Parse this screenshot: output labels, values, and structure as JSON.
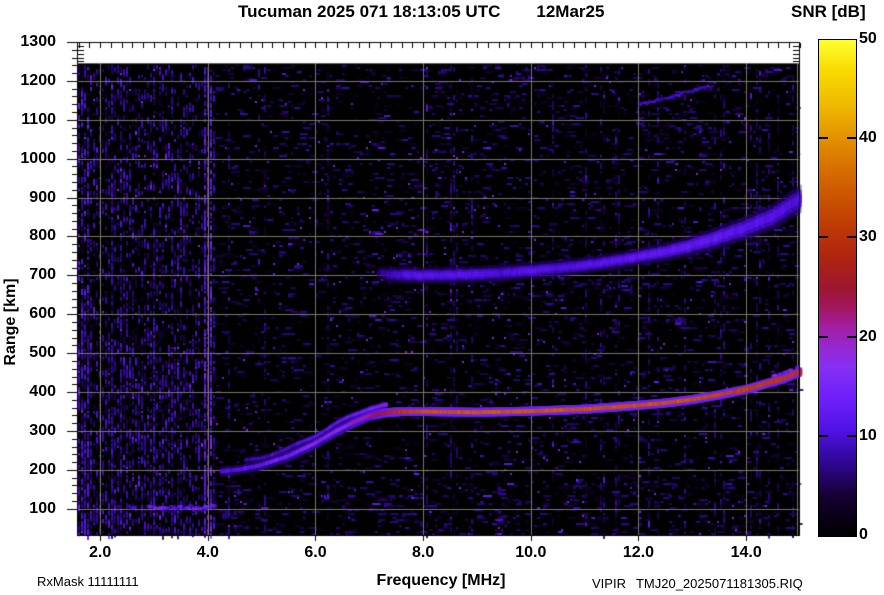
{
  "chart_data": {
    "type": "heatmap",
    "title_left": "Tucuman 2025 071 18:13:05 UTC",
    "title_right": "12Mar25",
    "xlabel": "Frequency [MHz]",
    "ylabel": "Range [km]",
    "x_tick_labels": [
      "2.0",
      "4.0",
      "6.0",
      "8.0",
      "10.0",
      "12.0",
      "14.0"
    ],
    "x_tick_values": [
      2,
      4,
      6,
      8,
      10,
      12,
      14
    ],
    "y_tick_labels": [
      "100",
      "200",
      "300",
      "400",
      "500",
      "600",
      "700",
      "800",
      "900",
      "1000",
      "1100",
      "1200",
      "1300"
    ],
    "y_tick_values": [
      100,
      200,
      300,
      400,
      500,
      600,
      700,
      800,
      900,
      1000,
      1100,
      1200,
      1300
    ],
    "x_range": [
      1.57,
      15.0
    ],
    "y_range": [
      30,
      1300
    ],
    "data_top_km": 1245,
    "grid": true,
    "x_minor_tick_mhz": 0.2,
    "y_minor_tick_km": 20,
    "colorbar": {
      "label": "SNR [dB]",
      "min": 0,
      "max": 50,
      "tick_labels": [
        "0",
        "10",
        "20",
        "30",
        "40",
        "50"
      ],
      "tick_values": [
        0,
        10,
        20,
        30,
        40,
        50
      ],
      "dash_values": [
        10,
        20,
        30,
        40
      ],
      "palette": [
        [
          0,
          "#000000"
        ],
        [
          4,
          "#150031"
        ],
        [
          8,
          "#3408a2"
        ],
        [
          11,
          "#5413ea"
        ],
        [
          14,
          "#6f20fa"
        ],
        [
          17,
          "#8530f2"
        ],
        [
          19,
          "#9628d2"
        ],
        [
          21,
          "#a31ea4"
        ],
        [
          23,
          "#a31660"
        ],
        [
          25,
          "#9e1630"
        ],
        [
          28,
          "#ae2410"
        ],
        [
          31,
          "#be3806"
        ],
        [
          35,
          "#ce5c00"
        ],
        [
          39,
          "#de8400"
        ],
        [
          43,
          "#eeb400"
        ],
        [
          47,
          "#f8dc00"
        ],
        [
          50,
          "#ffff30"
        ]
      ]
    },
    "features": {
      "main_trace": [
        [
          4.25,
          196,
          11
        ],
        [
          4.6,
          201,
          12
        ],
        [
          5.0,
          212,
          13
        ],
        [
          5.5,
          235,
          15
        ],
        [
          6.0,
          268,
          17
        ],
        [
          6.4,
          300,
          18
        ],
        [
          6.7,
          321,
          19
        ],
        [
          7.0,
          339,
          22
        ],
        [
          7.3,
          347,
          26
        ],
        [
          7.6,
          350,
          31
        ],
        [
          8.0,
          350,
          34
        ],
        [
          9.0,
          348,
          35
        ],
        [
          10.0,
          351,
          35
        ],
        [
          11.0,
          356,
          34
        ],
        [
          12.0,
          366,
          34
        ],
        [
          12.5,
          372,
          34
        ],
        [
          13.0,
          381,
          34
        ],
        [
          13.5,
          393,
          33
        ],
        [
          14.0,
          407,
          32
        ],
        [
          14.4,
          423,
          31
        ],
        [
          14.7,
          435,
          31
        ],
        [
          15.0,
          452,
          30
        ]
      ],
      "x_mode_split": {
        "f_start": 4.7,
        "f_end": 7.3,
        "offset_km": 19
      },
      "second_hop": [
        [
          7.15,
          706,
          9
        ],
        [
          7.6,
          701,
          11
        ],
        [
          8.0,
          700,
          12
        ],
        [
          8.5,
          701,
          12
        ],
        [
          9.0,
          703,
          12
        ],
        [
          9.5,
          707,
          11
        ],
        [
          10.0,
          712,
          12
        ],
        [
          10.5,
          718,
          11
        ],
        [
          11.0,
          726,
          12
        ],
        [
          11.5,
          736,
          12
        ],
        [
          12.0,
          748,
          13
        ],
        [
          12.5,
          761,
          13
        ],
        [
          13.0,
          777,
          13
        ],
        [
          13.5,
          799,
          13
        ],
        [
          14.0,
          822,
          12
        ],
        [
          14.5,
          852,
          12
        ],
        [
          15.0,
          897,
          11
        ]
      ],
      "e_layer": {
        "f_start": 2.9,
        "f_end": 4.12,
        "km": 104,
        "snr": 13
      },
      "rfi_band": {
        "f_center": 4.0,
        "width_mhz": 0.17,
        "top_km": 1240
      },
      "diagonal_streak": [
        [
          12.0,
          1138,
          9
        ],
        [
          13.35,
          1186,
          10
        ]
      ],
      "noise": {
        "left_region_max_f": 4.15,
        "left_density": 0.3,
        "right_density": 0.085
      }
    }
  },
  "footer": {
    "rxmask": "RxMask 11111111",
    "instrument": "VIPIR",
    "file": "TMJ20_2025071181305.RIQ"
  }
}
